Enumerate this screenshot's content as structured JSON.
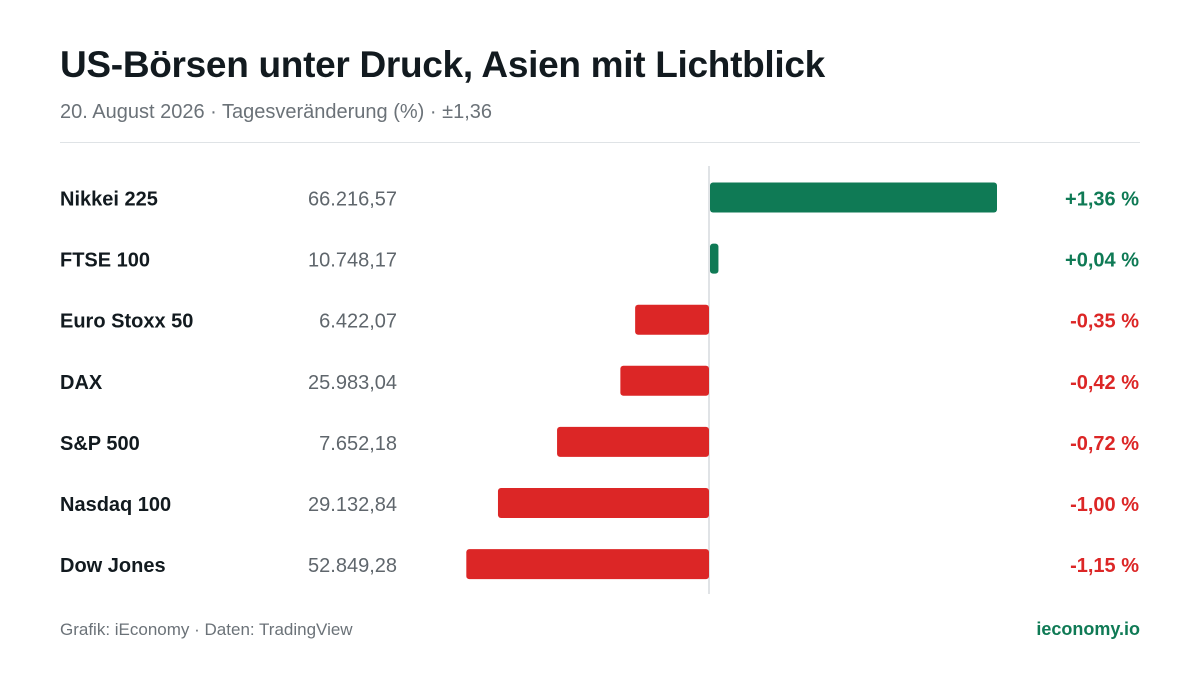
{
  "header": {
    "title": "US-Börsen unter Druck, Asien mit Lichtblick",
    "subtitle": "20. August 2026 · Tagesveränderung (%) · ±1,36"
  },
  "footer": {
    "source": "Grafik: iEconomy · Daten: TradingView",
    "brand": "ieconomy.io"
  },
  "colors": {
    "positive": "#0f7a55",
    "negative": "#dc2626",
    "axis": "#d6dadd",
    "label": "#121a1f",
    "value": "#5f666c"
  },
  "chart_data": {
    "type": "bar",
    "orientation": "horizontal",
    "unit": "%",
    "xlim": [
      -1.36,
      1.36
    ],
    "categories": [
      "Nikkei 225",
      "FTSE 100",
      "Euro Stoxx 50",
      "DAX",
      "S&P 500",
      "Nasdaq 100",
      "Dow Jones"
    ],
    "index_levels": [
      "66.216,57",
      "10.748,17",
      "6.422,07",
      "25.983,04",
      "7.652,18",
      "29.132,84",
      "52.849,28"
    ],
    "values": [
      1.36,
      0.04,
      -0.35,
      -0.42,
      -0.72,
      -1.0,
      -1.15
    ],
    "value_labels": [
      "+1,36 %",
      "+0,04 %",
      "-0,35 %",
      "-0,42 %",
      "-0,72 %",
      "-1,00 %",
      "-1,15 %"
    ]
  }
}
